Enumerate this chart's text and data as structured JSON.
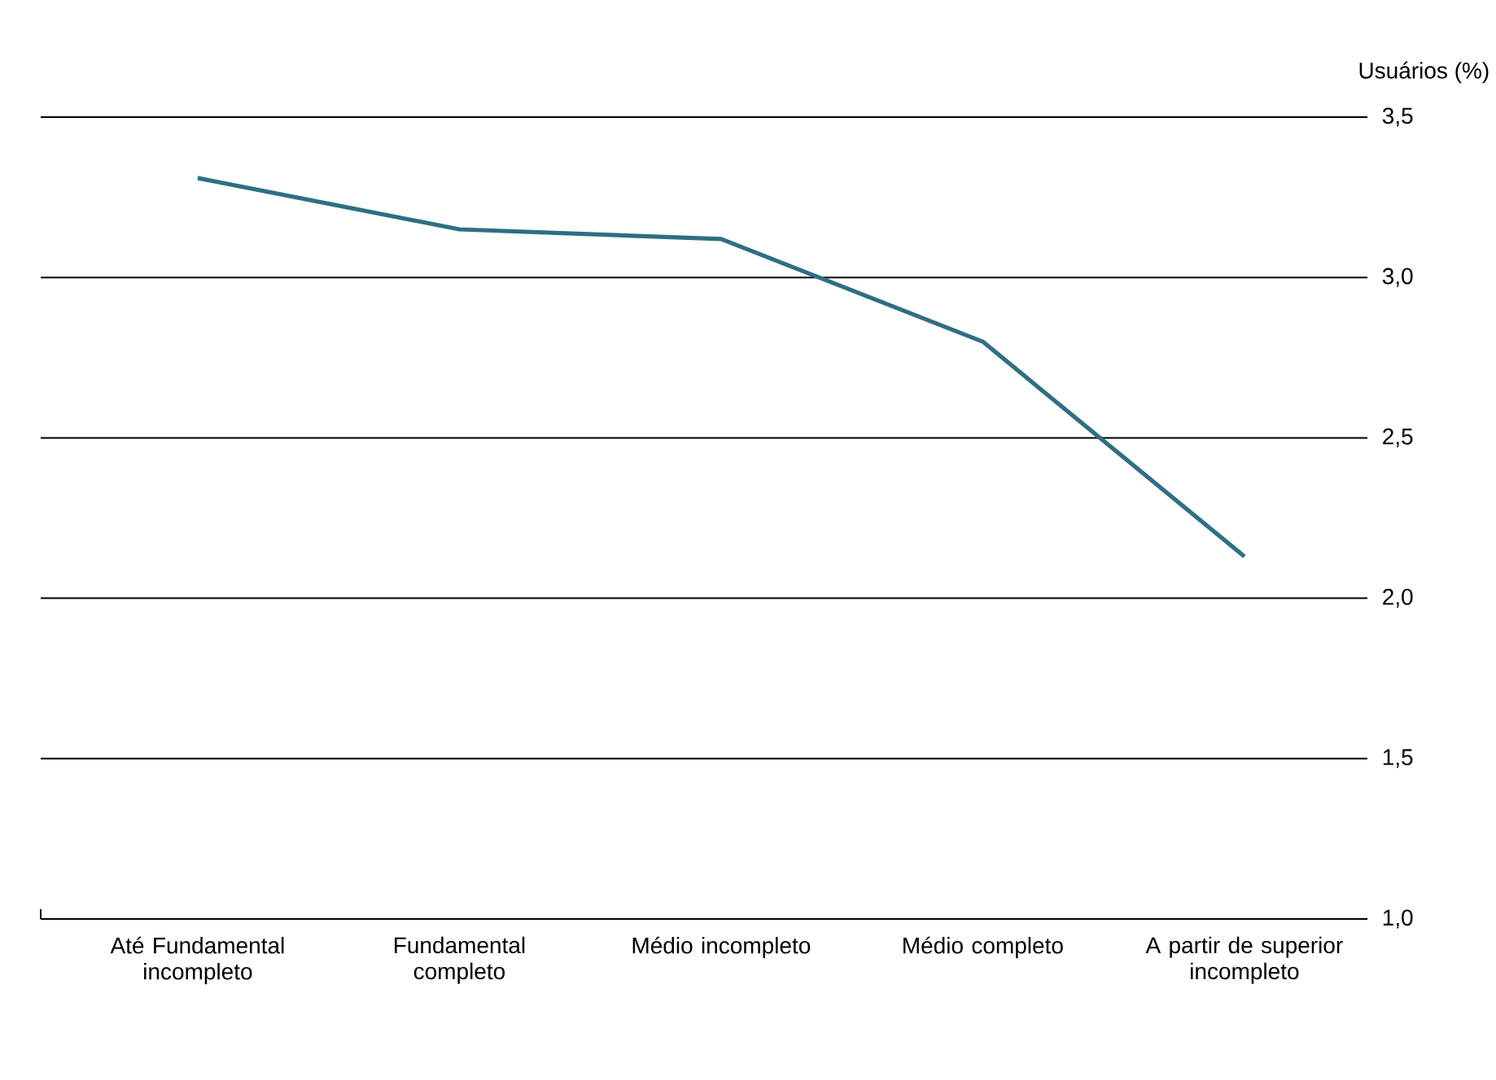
{
  "chart_data": {
    "type": "line",
    "ylabel": "Usuários (%)",
    "categories": [
      "Até Fundamental incompleto",
      "Fundamental completo",
      "Médio incompleto",
      "Médio completo",
      "A partir de superior incompleto"
    ],
    "series": [
      {
        "color": "#2e6e85",
        "values": [
          3.31,
          3.15,
          3.12,
          2.8,
          2.13
        ]
      }
    ],
    "ylim": [
      1.0,
      3.5
    ],
    "yticks": [
      {
        "value": 1.0,
        "label": "1,0"
      },
      {
        "value": 1.5,
        "label": "1,5"
      },
      {
        "value": 2.0,
        "label": "2,0"
      },
      {
        "value": 2.5,
        "label": "2,5"
      },
      {
        "value": 3.0,
        "label": "3,0"
      },
      {
        "value": 3.5,
        "label": "3,5"
      }
    ],
    "grid": "y",
    "marker": "none",
    "line_style": "solid"
  }
}
